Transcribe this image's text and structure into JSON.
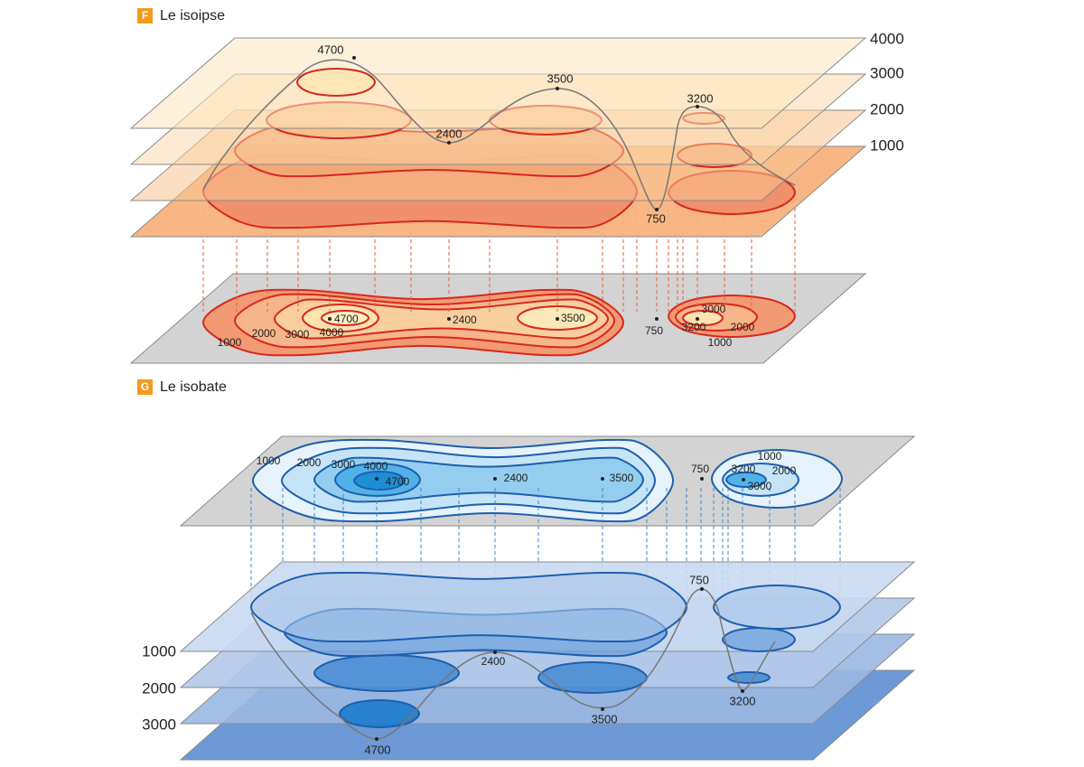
{
  "sections": [
    {
      "badge": "F",
      "title": "Le isoipse",
      "levels": [
        4000,
        3000,
        2000,
        1000
      ],
      "profile_labels": [
        4700,
        3500,
        2400,
        3200,
        750
      ],
      "map_labels": [
        4700,
        2400,
        3500,
        750,
        1000,
        2000,
        3000,
        4000,
        3000,
        3200,
        2000,
        1000
      ]
    },
    {
      "badge": "G",
      "title": "Le isobate",
      "levels": [
        1000,
        2000,
        3000
      ],
      "map_labels": [
        1000,
        2000,
        3000,
        4000,
        4700,
        2400,
        3500,
        750,
        1000,
        3200,
        2000,
        3000
      ],
      "profile_labels": [
        750,
        2400,
        4700,
        3500,
        3200
      ]
    }
  ]
}
